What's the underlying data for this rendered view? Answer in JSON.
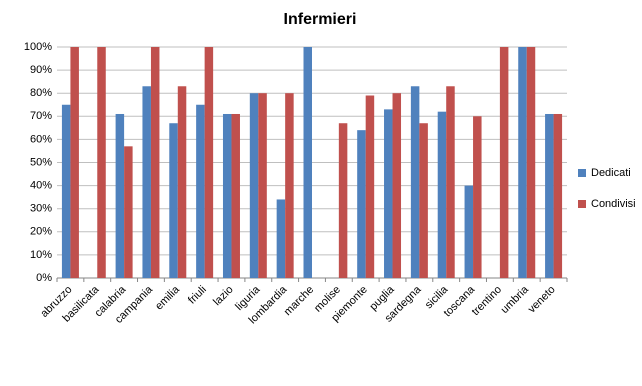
{
  "chart_data": {
    "type": "bar",
    "title": "Infermieri",
    "categories": [
      "abruzzo",
      "basilicata",
      "calabria",
      "campania",
      "emilia",
      "friuli",
      "lazio",
      "liguria",
      "lombardia",
      "marche",
      "molise",
      "piemonte",
      "puglia",
      "sardegna",
      "sicilia",
      "toscana",
      "trentino",
      "umbria",
      "veneto"
    ],
    "series": [
      {
        "name": "Dedicati",
        "color": "#4f81bd",
        "values": [
          75,
          null,
          71,
          83,
          67,
          75,
          71,
          80,
          34,
          100,
          null,
          64,
          73,
          83,
          72,
          40,
          null,
          100,
          71
        ]
      },
      {
        "name": "Condivisi",
        "color": "#c0504d",
        "values": [
          100,
          100,
          57,
          100,
          83,
          100,
          71,
          80,
          80,
          null,
          67,
          79,
          80,
          67,
          83,
          70,
          100,
          100,
          71
        ]
      }
    ],
    "ylim": [
      0,
      100
    ],
    "yticks": [
      {
        "value": 0,
        "label": "0%"
      },
      {
        "value": 10,
        "label": "10%"
      },
      {
        "value": 20,
        "label": "20%"
      },
      {
        "value": 30,
        "label": "30%"
      },
      {
        "value": 40,
        "label": "40%"
      },
      {
        "value": 50,
        "label": "50%"
      },
      {
        "value": 60,
        "label": "60%"
      },
      {
        "value": 70,
        "label": "70%"
      },
      {
        "value": 80,
        "label": "80%"
      },
      {
        "value": 90,
        "label": "90%"
      },
      {
        "value": 100,
        "label": "100%"
      }
    ],
    "grid": true,
    "legend": "right"
  }
}
